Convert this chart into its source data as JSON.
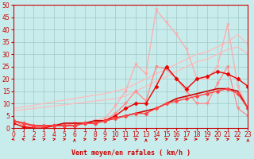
{
  "xlabel": "Vent moyen/en rafales ( km/h )",
  "bg_color": "#c8ecec",
  "grid_color": "#a0c8c8",
  "xlim": [
    0,
    23
  ],
  "ylim": [
    0,
    50
  ],
  "yticks": [
    0,
    5,
    10,
    15,
    20,
    25,
    30,
    35,
    40,
    45,
    50
  ],
  "xticks": [
    0,
    1,
    2,
    3,
    4,
    5,
    6,
    7,
    8,
    9,
    10,
    11,
    12,
    13,
    14,
    15,
    16,
    17,
    18,
    19,
    20,
    21,
    22,
    23
  ],
  "series": [
    {
      "x": [
        0,
        1,
        2,
        3,
        4,
        5,
        6,
        7,
        8,
        9,
        10,
        11,
        12,
        13,
        14,
        15,
        16,
        17,
        18,
        19,
        20,
        21,
        22,
        23
      ],
      "y": [
        8,
        8.6,
        9.3,
        10,
        10.7,
        11.4,
        12,
        12.7,
        13.4,
        14,
        15,
        16,
        18,
        20,
        22,
        24,
        26,
        28,
        30,
        31,
        33,
        35,
        38,
        34
      ],
      "color": "#ffbbbb",
      "linewidth": 0.9,
      "marker": null
    },
    {
      "x": [
        0,
        1,
        2,
        3,
        4,
        5,
        6,
        7,
        8,
        9,
        10,
        11,
        12,
        13,
        14,
        15,
        16,
        17,
        18,
        19,
        20,
        21,
        22,
        23
      ],
      "y": [
        7,
        7.5,
        8,
        8.5,
        9,
        9.5,
        10,
        10.5,
        11,
        11.5,
        12,
        13,
        15,
        17,
        19,
        21,
        23,
        25,
        27,
        28,
        30,
        32,
        33,
        30
      ],
      "color": "#ffbbbb",
      "linewidth": 0.9,
      "marker": null
    },
    {
      "x": [
        0,
        1,
        2,
        3,
        4,
        5,
        6,
        7,
        8,
        9,
        10,
        11,
        12,
        13,
        14,
        15,
        16,
        17,
        18,
        19,
        20,
        21,
        22,
        23
      ],
      "y": [
        3,
        2,
        1,
        0.5,
        1,
        1,
        2,
        2,
        3,
        4,
        9,
        15,
        26,
        22,
        48,
        43,
        38,
        32,
        20,
        20,
        25,
        42,
        17,
        8
      ],
      "color": "#ffaaaa",
      "linewidth": 0.9,
      "marker": "v",
      "markersize": 2.5
    },
    {
      "x": [
        0,
        1,
        2,
        3,
        4,
        5,
        6,
        7,
        8,
        9,
        10,
        11,
        12,
        13,
        14,
        15,
        16,
        17,
        18,
        19,
        20,
        21,
        22,
        23
      ],
      "y": [
        3,
        1,
        0.5,
        0.5,
        1,
        1,
        2,
        2,
        3,
        3,
        6,
        10,
        15,
        11,
        25,
        24,
        20,
        15,
        10,
        10,
        18,
        25,
        8,
        5
      ],
      "color": "#ff8888",
      "linewidth": 0.9,
      "marker": "v",
      "markersize": 2.5
    },
    {
      "x": [
        0,
        1,
        2,
        3,
        4,
        5,
        6,
        7,
        8,
        9,
        10,
        11,
        12,
        13,
        14,
        15,
        16,
        17,
        18,
        19,
        20,
        21,
        22,
        23
      ],
      "y": [
        3,
        2,
        1,
        1,
        1,
        2,
        2,
        2,
        3,
        3,
        4,
        5,
        6,
        7,
        8,
        10,
        12,
        13,
        14,
        15,
        16,
        16,
        15,
        8
      ],
      "color": "#cc0000",
      "linewidth": 1.2,
      "marker": null
    },
    {
      "x": [
        0,
        1,
        2,
        3,
        4,
        5,
        6,
        7,
        8,
        9,
        10,
        11,
        12,
        13,
        14,
        15,
        16,
        17,
        18,
        19,
        20,
        21,
        22,
        23
      ],
      "y": [
        2,
        0.5,
        0,
        0,
        1,
        1,
        1,
        2,
        2,
        3,
        5,
        8,
        10,
        10,
        17,
        25,
        20,
        16,
        20,
        21,
        23,
        22,
        20,
        17
      ],
      "color": "#ee0000",
      "linewidth": 1.0,
      "marker": "D",
      "markersize": 2.5
    },
    {
      "x": [
        0,
        1,
        2,
        3,
        4,
        5,
        6,
        7,
        8,
        9,
        10,
        11,
        12,
        13,
        14,
        15,
        16,
        17,
        18,
        19,
        20,
        21,
        22,
        23
      ],
      "y": [
        3,
        2,
        1,
        1,
        1,
        1,
        1,
        2,
        2,
        3,
        4,
        5,
        6,
        6,
        8,
        10,
        11,
        12,
        13,
        14,
        15,
        16,
        14,
        8
      ],
      "color": "#ff4444",
      "linewidth": 1.0,
      "marker": "D",
      "markersize": 2.5
    }
  ],
  "wind_arrows": {
    "x": [
      0,
      1,
      2,
      3,
      4,
      5,
      6,
      7,
      8,
      9,
      10,
      11,
      12,
      13,
      14,
      15,
      16,
      17,
      18,
      19,
      20,
      21,
      22,
      23
    ],
    "angles_deg": [
      225,
      135,
      315,
      45,
      45,
      45,
      90,
      45,
      45,
      45,
      0,
      45,
      45,
      90,
      45,
      45,
      45,
      0,
      0,
      45,
      45,
      45,
      45,
      90
    ]
  }
}
